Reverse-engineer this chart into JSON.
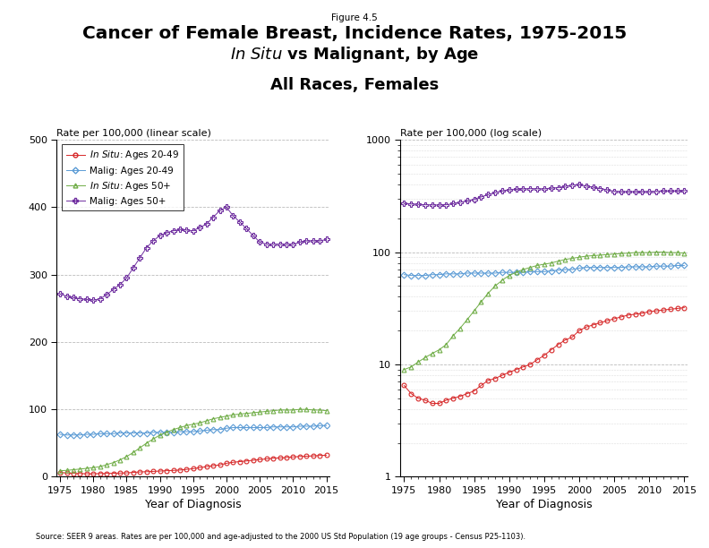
{
  "years": [
    1975,
    1976,
    1977,
    1978,
    1979,
    1980,
    1981,
    1982,
    1983,
    1984,
    1985,
    1986,
    1987,
    1988,
    1989,
    1990,
    1991,
    1992,
    1993,
    1994,
    1995,
    1996,
    1997,
    1998,
    1999,
    2000,
    2001,
    2002,
    2003,
    2004,
    2005,
    2006,
    2007,
    2008,
    2009,
    2010,
    2011,
    2012,
    2013,
    2014,
    2015
  ],
  "insitu_20_49": [
    6.5,
    5.5,
    5.0,
    4.8,
    4.5,
    4.5,
    4.8,
    5.0,
    5.2,
    5.5,
    5.8,
    6.5,
    7.2,
    7.5,
    8.0,
    8.5,
    9.0,
    9.5,
    10.0,
    11.0,
    12.0,
    13.5,
    15.0,
    16.5,
    17.5,
    20.0,
    21.5,
    22.5,
    23.5,
    24.5,
    25.5,
    26.5,
    27.5,
    28.0,
    28.5,
    29.5,
    30.0,
    30.5,
    31.0,
    31.5,
    32.0
  ],
  "malig_20_49": [
    63,
    62,
    62,
    62,
    63,
    63,
    64,
    64,
    64,
    65,
    65,
    65,
    65,
    65,
    66,
    66,
    66,
    66,
    67,
    67,
    67,
    68,
    69,
    70,
    70,
    72,
    73,
    73,
    73,
    73,
    73,
    73,
    74,
    74,
    74,
    74,
    75,
    75,
    75,
    76,
    76
  ],
  "insitu_50plus": [
    9.0,
    9.5,
    10.5,
    11.5,
    12.5,
    13.5,
    15.0,
    18.0,
    21.0,
    25.0,
    30.0,
    36.0,
    43.0,
    50.0,
    56.0,
    62.0,
    66.0,
    70.0,
    73.0,
    76.0,
    78.0,
    80.0,
    83.0,
    86.0,
    88.0,
    90.0,
    92.0,
    93.0,
    94.0,
    95.0,
    96.0,
    97.0,
    98.0,
    99.0,
    99.0,
    99.0,
    100.0,
    100.0,
    99.0,
    99.0,
    98.0
  ],
  "malig_50plus": [
    271,
    268,
    266,
    264,
    263,
    262,
    264,
    270,
    278,
    285,
    295,
    310,
    325,
    340,
    350,
    358,
    362,
    365,
    367,
    366,
    365,
    370,
    375,
    385,
    395,
    400,
    387,
    378,
    368,
    358,
    348,
    345,
    345,
    345,
    345,
    345,
    348,
    350,
    350,
    350,
    352
  ],
  "title_fig": "Figure 4.5",
  "title1": "Cancer of Female Breast, Incidence Rates, 1975-2015",
  "title2_italic": "In Situ",
  "title2_rest": " vs Malignant, by Age",
  "title3": "All Races, Females",
  "ylabel_linear": "Rate per 100,000 (linear scale)",
  "ylabel_log": "Rate per 100,000 (log scale)",
  "xlabel": "Year of Diagnosis",
  "source": "Source: SEER 9 areas. Rates are per 100,000 and age-adjusted to the 2000 US Std Population (19 age groups - Census P25-1103).",
  "colors": [
    "#d62728",
    "#5b9bd5",
    "#70ad47",
    "#7030a0"
  ],
  "ylim_linear": [
    0,
    500
  ],
  "ylim_log_min": 1,
  "ylim_log_max": 1000,
  "yticks_linear": [
    0,
    100,
    200,
    300,
    400,
    500
  ],
  "xticks": [
    1975,
    1980,
    1985,
    1990,
    1995,
    2000,
    2005,
    2010,
    2015
  ]
}
